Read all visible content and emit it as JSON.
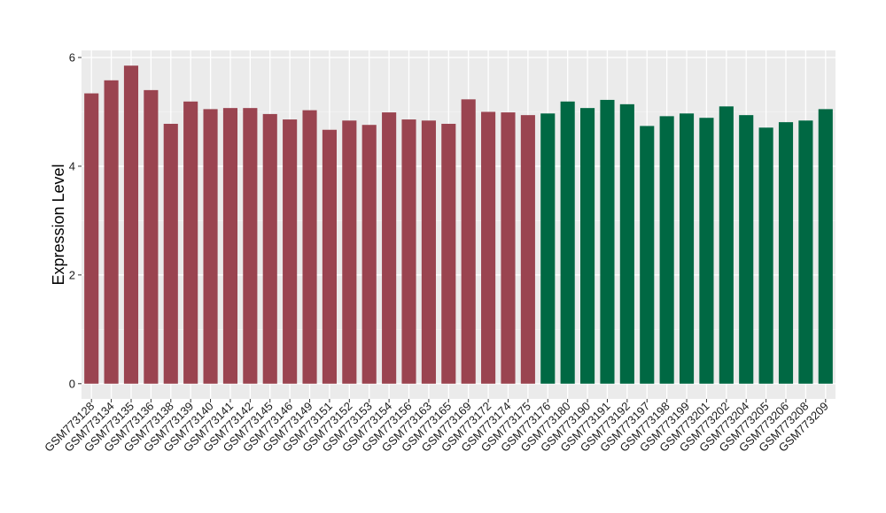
{
  "chart_data": {
    "type": "bar",
    "ylabel": "Expression Level",
    "xlabel": "",
    "ylim": [
      -0.28,
      6.13
    ],
    "yticks": [
      0,
      2,
      4,
      6
    ],
    "grid": true,
    "panel_background": "#ebebeb",
    "categories": [
      "GSM773128",
      "GSM773134",
      "GSM773135",
      "GSM773136",
      "GSM773138",
      "GSM773139",
      "GSM773140",
      "GSM773141",
      "GSM773142",
      "GSM773145",
      "GSM773146",
      "GSM773149",
      "GSM773151",
      "GSM773152",
      "GSM773153",
      "GSM773154",
      "GSM773156",
      "GSM773163",
      "GSM773165",
      "GSM773169",
      "GSM773172",
      "GSM773174",
      "GSM773175",
      "GSM773176",
      "GSM773180",
      "GSM773190",
      "GSM773191",
      "GSM773192",
      "GSM773197",
      "GSM773198",
      "GSM773199",
      "GSM773201",
      "GSM773202",
      "GSM773204",
      "GSM773205",
      "GSM773206",
      "GSM773208",
      "GSM773209"
    ],
    "values": [
      5.34,
      5.58,
      5.85,
      5.4,
      4.78,
      5.19,
      5.05,
      5.07,
      5.07,
      4.96,
      4.86,
      5.03,
      4.67,
      4.84,
      4.76,
      4.99,
      4.86,
      4.84,
      4.78,
      5.23,
      5.0,
      4.99,
      4.94,
      4.97,
      5.19,
      5.07,
      5.22,
      5.14,
      4.74,
      4.92,
      4.97,
      4.89,
      5.1,
      4.94,
      4.71,
      4.81,
      4.84,
      5.05
    ],
    "groups": [
      0,
      0,
      0,
      0,
      0,
      0,
      0,
      0,
      0,
      0,
      0,
      0,
      0,
      0,
      0,
      0,
      0,
      0,
      0,
      0,
      0,
      0,
      0,
      1,
      1,
      1,
      1,
      1,
      1,
      1,
      1,
      1,
      1,
      1,
      1,
      1,
      1,
      1
    ],
    "group_colors": [
      "#9a4450",
      "#006843"
    ]
  }
}
